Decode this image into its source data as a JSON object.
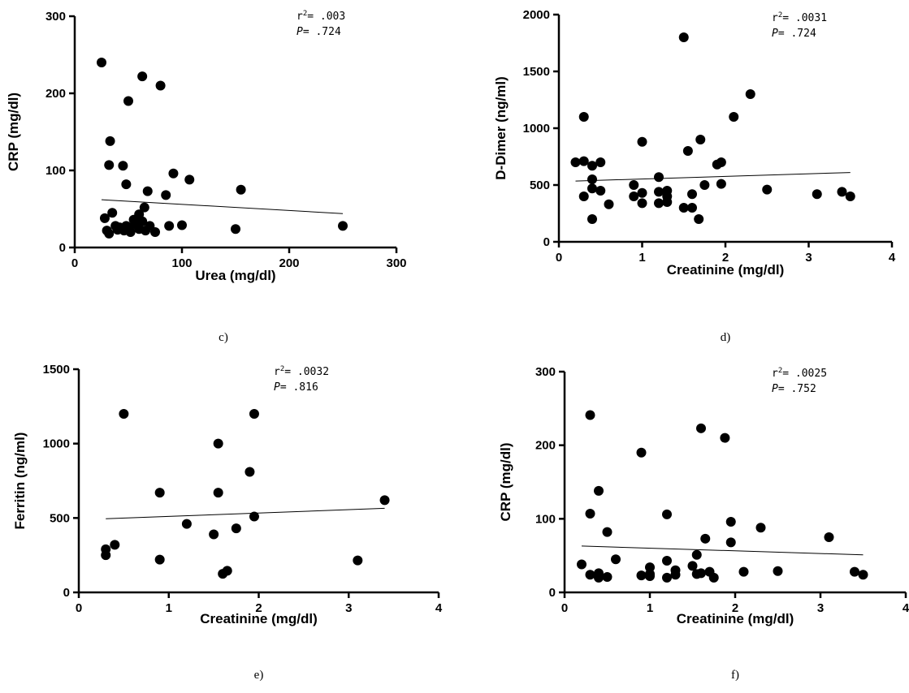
{
  "chart_data": [
    {
      "type": "scatter",
      "panel_label": "",
      "xlabel": "Urea (mg/dl)",
      "ylabel": "CRP (mg/dl)",
      "xlim": [
        0,
        300
      ],
      "ylim": [
        0,
        300
      ],
      "xticks": [
        0,
        100,
        200,
        300
      ],
      "yticks": [
        0,
        100,
        200,
        300
      ],
      "stat_r2": ".003",
      "stat_p": ".724",
      "trendline": {
        "x": [
          25,
          250
        ],
        "y": [
          62,
          44
        ]
      },
      "points": [
        [
          25,
          240
        ],
        [
          63,
          222
        ],
        [
          80,
          210
        ],
        [
          50,
          190
        ],
        [
          33,
          138
        ],
        [
          32,
          107
        ],
        [
          45,
          106
        ],
        [
          92,
          96
        ],
        [
          107,
          88
        ],
        [
          155,
          75
        ],
        [
          68,
          73
        ],
        [
          85,
          68
        ],
        [
          48,
          82
        ],
        [
          35,
          45
        ],
        [
          28,
          38
        ],
        [
          65,
          52
        ],
        [
          60,
          43
        ],
        [
          55,
          36
        ],
        [
          63,
          34
        ],
        [
          57,
          30
        ],
        [
          70,
          28
        ],
        [
          88,
          28
        ],
        [
          100,
          29
        ],
        [
          150,
          24
        ],
        [
          250,
          28
        ],
        [
          30,
          22
        ],
        [
          32,
          18
        ],
        [
          40,
          23
        ],
        [
          42,
          26
        ],
        [
          44,
          24
        ],
        [
          46,
          22
        ],
        [
          50,
          26
        ],
        [
          52,
          20
        ],
        [
          60,
          24
        ],
        [
          66,
          22
        ],
        [
          75,
          20
        ],
        [
          38,
          28
        ],
        [
          48,
          28
        ]
      ]
    },
    {
      "type": "scatter",
      "panel_label": "d)",
      "xlabel": "Creatinine (mg/dl)",
      "ylabel": "D-Dimer (ng/ml)",
      "xlim": [
        0,
        4
      ],
      "ylim": [
        0,
        2000
      ],
      "xticks": [
        0,
        1,
        2,
        3,
        4
      ],
      "yticks": [
        0,
        500,
        1000,
        1500,
        2000
      ],
      "stat_r2": ".0031",
      "stat_p": ".724",
      "trendline": {
        "x": [
          0.2,
          3.5
        ],
        "y": [
          535,
          610
        ]
      },
      "points": [
        [
          1.5,
          1800
        ],
        [
          2.3,
          1300
        ],
        [
          0.3,
          1100
        ],
        [
          2.1,
          1100
        ],
        [
          1.7,
          900
        ],
        [
          1.0,
          880
        ],
        [
          1.55,
          800
        ],
        [
          1.9,
          680
        ],
        [
          1.95,
          700
        ],
        [
          0.2,
          700
        ],
        [
          0.3,
          710
        ],
        [
          0.5,
          700
        ],
        [
          0.4,
          670
        ],
        [
          0.4,
          550
        ],
        [
          0.5,
          450
        ],
        [
          0.4,
          470
        ],
        [
          0.3,
          400
        ],
        [
          0.6,
          330
        ],
        [
          0.4,
          200
        ],
        [
          0.9,
          500
        ],
        [
          0.9,
          400
        ],
        [
          1.0,
          430
        ],
        [
          1.0,
          340
        ],
        [
          1.2,
          570
        ],
        [
          1.2,
          440
        ],
        [
          1.2,
          340
        ],
        [
          1.3,
          450
        ],
        [
          1.3,
          400
        ],
        [
          1.3,
          350
        ],
        [
          1.5,
          300
        ],
        [
          1.6,
          300
        ],
        [
          1.6,
          420
        ],
        [
          1.75,
          500
        ],
        [
          1.95,
          510
        ],
        [
          1.68,
          200
        ],
        [
          2.5,
          460
        ],
        [
          3.1,
          420
        ],
        [
          3.4,
          440
        ],
        [
          3.5,
          400
        ]
      ]
    },
    {
      "type": "scatter",
      "panel_label": "e)",
      "xlabel": "Creatinine (mg/dl)",
      "ylabel": "Ferritin (ng/ml)",
      "xlim": [
        0,
        4
      ],
      "ylim": [
        0,
        1500
      ],
      "xticks": [
        0,
        1,
        2,
        3,
        4
      ],
      "yticks": [
        0,
        500,
        1000,
        1500
      ],
      "stat_r2": ".0032",
      "stat_p": ".816",
      "trendline": {
        "x": [
          0.3,
          3.4
        ],
        "y": [
          495,
          565
        ]
      },
      "points": [
        [
          0.5,
          1200
        ],
        [
          1.95,
          1200
        ],
        [
          1.55,
          1000
        ],
        [
          1.9,
          810
        ],
        [
          0.9,
          670
        ],
        [
          1.55,
          670
        ],
        [
          3.4,
          620
        ],
        [
          1.95,
          510
        ],
        [
          1.2,
          460
        ],
        [
          1.75,
          430
        ],
        [
          1.5,
          390
        ],
        [
          0.4,
          320
        ],
        [
          0.3,
          290
        ],
        [
          0.3,
          250
        ],
        [
          0.9,
          220
        ],
        [
          3.1,
          215
        ],
        [
          1.65,
          145
        ],
        [
          1.6,
          125
        ]
      ]
    },
    {
      "type": "scatter",
      "panel_label": "f)",
      "xlabel": "Creatinine (mg/dl)",
      "ylabel": "CRP (mg/dl)",
      "xlim": [
        0,
        4
      ],
      "ylim": [
        0,
        300
      ],
      "xticks": [
        0,
        1,
        2,
        3,
        4
      ],
      "yticks": [
        0,
        100,
        200,
        300
      ],
      "stat_r2": ".0025",
      "stat_p": ".752",
      "trendline": {
        "x": [
          0.2,
          3.5
        ],
        "y": [
          63,
          51
        ]
      },
      "points": [
        [
          0.3,
          241
        ],
        [
          1.6,
          223
        ],
        [
          1.88,
          210
        ],
        [
          0.9,
          190
        ],
        [
          0.4,
          138
        ],
        [
          0.3,
          107
        ],
        [
          1.2,
          106
        ],
        [
          1.95,
          96
        ],
        [
          2.3,
          88
        ],
        [
          3.1,
          75
        ],
        [
          1.65,
          73
        ],
        [
          1.95,
          68
        ],
        [
          0.5,
          82
        ],
        [
          0.6,
          45
        ],
        [
          0.2,
          38
        ],
        [
          1.55,
          51
        ],
        [
          1.2,
          43
        ],
        [
          1.5,
          36
        ],
        [
          1.0,
          34
        ],
        [
          1.3,
          30
        ],
        [
          1.7,
          28
        ],
        [
          2.1,
          28
        ],
        [
          2.5,
          29
        ],
        [
          3.4,
          28
        ],
        [
          3.5,
          24
        ],
        [
          0.3,
          24
        ],
        [
          0.4,
          20
        ],
        [
          0.4,
          26
        ],
        [
          0.5,
          21
        ],
        [
          0.9,
          23
        ],
        [
          1.0,
          25
        ],
        [
          1.0,
          22
        ],
        [
          1.2,
          20
        ],
        [
          1.3,
          24
        ],
        [
          1.55,
          25
        ],
        [
          1.6,
          26
        ],
        [
          1.75,
          20
        ]
      ]
    }
  ],
  "page_labels": [
    "c)"
  ]
}
